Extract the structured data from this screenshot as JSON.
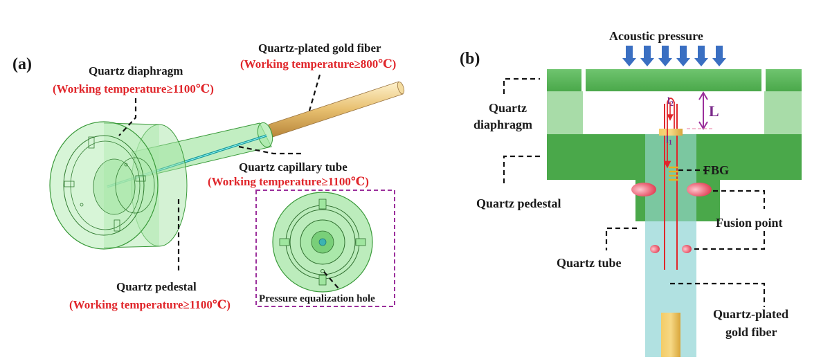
{
  "panel_a": {
    "tag": "(a)",
    "fiber_label": "Quartz-plated gold fiber",
    "fiber_temp": "(Working temperature≥800℃)",
    "diaphragm_label": "Quartz diaphragm",
    "diaphragm_temp": "(Working temperature≥1100℃)",
    "capillary_label": "Quartz capillary tube",
    "capillary_temp": "(Working temperature≥1100℃)",
    "pedestal_label": "Quartz pedestal",
    "pedestal_temp": "(Working temperature≥1100℃)",
    "inset_label": "Pressure equalization hole"
  },
  "panel_b": {
    "tag": "(b)",
    "acoustic_label": "Acoustic pressure",
    "diaphragm_line1": "Quartz",
    "diaphragm_line2": "diaphragm",
    "pedestal_label": "Quartz pedestal",
    "fbg_label": "FBG",
    "fusion_label": "Fusion point",
    "tube_label": "Quartz tube",
    "fiber_line1": "Quartz-plated",
    "fiber_line2": "gold fiber",
    "L_label": "L",
    "l2_main": "l",
    "l2_sub": "2",
    "l1_main": "l",
    "l1_sub": "1"
  },
  "colors": {
    "label_red": "#e0262b",
    "quartz_green": "#5cb85c",
    "dark_green": "#3c9a3c",
    "arrow_blue": "#3a6fc2",
    "gold": "#e8b84a",
    "magenta_dash": "#9b2f9b",
    "tube_cyan": "#a8dede"
  }
}
